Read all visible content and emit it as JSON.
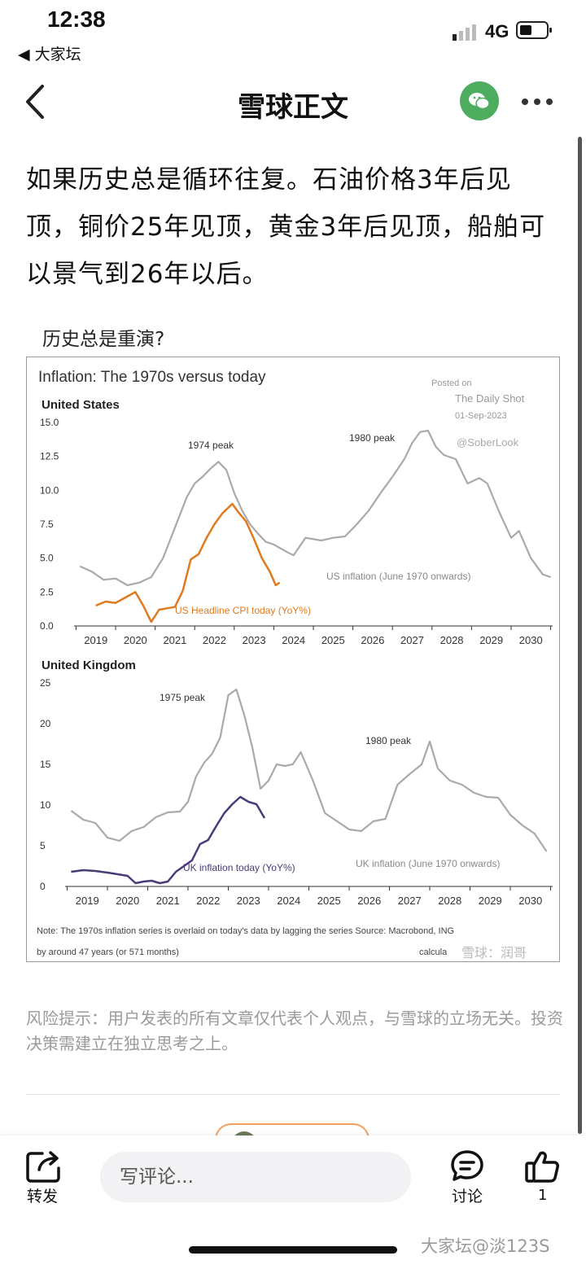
{
  "status_bar": {
    "time": "12:38",
    "back_app": "◀ 大家坛",
    "network": "4G"
  },
  "nav": {
    "title": "雪球正文"
  },
  "post": {
    "body": "如果历史总是循环往复。石油价格3年后见顶，铜价25年见顶，黄金3年后见顶，船舶可以景气到26年以后。",
    "caption": "历史总是重演?"
  },
  "chart_data": {
    "type": "line",
    "title": "Inflation: The 1970s versus today",
    "posted_on": "Posted on",
    "source_name": "The Daily Shot",
    "posted_date": "01-Sep-2023",
    "handle": "@SoberLook",
    "panels": [
      {
        "title": "United States",
        "ylim": [
          0,
          15
        ],
        "yticks": [
          "15.0",
          "12.5",
          "10.0",
          "7.5",
          "5.0",
          "2.5",
          "0.0"
        ],
        "xticks": [
          "2019",
          "2020",
          "2021",
          "2022",
          "2023",
          "2024",
          "2025",
          "2026",
          "2027",
          "2028",
          "2029",
          "2030"
        ],
        "annotations": [
          "1974 peak",
          "1980 peak"
        ],
        "series": [
          {
            "name": "US inflation (June 1970 onwards)",
            "color": "#aaaaaa",
            "x": [
              2018.6,
              2018.9,
              2019.2,
              2019.5,
              2019.8,
              2020.1,
              2020.4,
              2020.7,
              2020.9,
              2021.1,
              2021.3,
              2021.5,
              2021.7,
              2021.9,
              2022.1,
              2022.3,
              2022.5,
              2022.7,
              2022.9,
              2023.1,
              2023.3,
              2023.5,
              2023.8,
              2024.0,
              2024.3,
              2024.7,
              2025.0,
              2025.3,
              2025.6,
              2025.9,
              2026.2,
              2026.5,
              2026.8,
              2027.0,
              2027.2,
              2027.4,
              2027.6,
              2027.8,
              2028.1,
              2028.4,
              2028.7,
              2028.9,
              2029.2,
              2029.5,
              2029.7,
              2030.0,
              2030.3,
              2030.5
            ],
            "values": [
              4.4,
              4.0,
              3.4,
              3.5,
              3.0,
              3.2,
              3.6,
              5.0,
              6.5,
              8.0,
              9.5,
              10.5,
              11.0,
              11.6,
              12.1,
              11.5,
              9.8,
              8.5,
              7.5,
              6.8,
              6.2,
              6.0,
              5.5,
              5.2,
              6.5,
              6.3,
              6.5,
              6.6,
              7.5,
              8.5,
              9.8,
              11.0,
              12.3,
              13.5,
              14.3,
              14.4,
              13.2,
              12.6,
              12.3,
              10.5,
              10.9,
              10.5,
              8.4,
              6.5,
              7.0,
              5.0,
              3.8,
              3.6
            ]
          },
          {
            "name": "US Headline CPI today (YoY%)",
            "color": "#e07a1e",
            "x": [
              2019.0,
              2019.25,
              2019.5,
              2019.75,
              2020.0,
              2020.2,
              2020.4,
              2020.6,
              2020.8,
              2021.0,
              2021.2,
              2021.4,
              2021.6,
              2021.8,
              2022.0,
              2022.2,
              2022.45,
              2022.6,
              2022.8,
              2023.0,
              2023.2,
              2023.4,
              2023.55,
              2023.65
            ],
            "values": [
              1.5,
              1.8,
              1.7,
              2.1,
              2.5,
              1.5,
              0.3,
              1.2,
              1.3,
              1.4,
              2.6,
              4.9,
              5.3,
              6.5,
              7.5,
              8.3,
              9.0,
              8.4,
              7.7,
              6.4,
              5.0,
              4.0,
              3.0,
              3.2
            ]
          }
        ],
        "series_labels": [
          "US inflation (June 1970 onwards)",
          "US Headline CPI today (YoY%)"
        ]
      },
      {
        "title": "United Kingdom",
        "ylim": [
          0,
          25
        ],
        "yticks": [
          "25",
          "20",
          "15",
          "10",
          "5",
          "0"
        ],
        "xticks": [
          "2019",
          "2020",
          "2021",
          "2022",
          "2023",
          "2024",
          "2025",
          "2026",
          "2027",
          "2028",
          "2029",
          "2030"
        ],
        "annotations": [
          "1975 peak",
          "1980 peak"
        ],
        "series": [
          {
            "name": "UK inflation (June 1970 onwards)",
            "color": "#aaaaaa",
            "x": [
              2018.6,
              2018.9,
              2019.2,
              2019.5,
              2019.8,
              2020.1,
              2020.4,
              2020.7,
              2021.0,
              2021.3,
              2021.5,
              2021.7,
              2021.9,
              2022.1,
              2022.3,
              2022.5,
              2022.7,
              2022.9,
              2023.1,
              2023.3,
              2023.5,
              2023.7,
              2023.9,
              2024.1,
              2024.3,
              2024.6,
              2024.9,
              2025.2,
              2025.5,
              2025.8,
              2026.1,
              2026.4,
              2026.7,
              2027.0,
              2027.3,
              2027.5,
              2027.7,
              2028.0,
              2028.3,
              2028.6,
              2028.9,
              2029.2,
              2029.5,
              2029.8,
              2030.1,
              2030.4
            ],
            "values": [
              9.3,
              8.2,
              7.8,
              6.0,
              5.6,
              6.8,
              7.3,
              8.5,
              9.1,
              9.2,
              10.4,
              13.5,
              15.2,
              16.3,
              18.3,
              23.5,
              24.2,
              21.0,
              17.0,
              12.0,
              13.0,
              15.0,
              14.8,
              15.0,
              16.5,
              13.0,
              9.0,
              8.0,
              7.0,
              6.8,
              8.0,
              8.3,
              12.5,
              13.8,
              15.0,
              17.8,
              14.5,
              13.0,
              12.5,
              11.5,
              11.0,
              10.9,
              8.8,
              7.5,
              6.5,
              4.3
            ]
          },
          {
            "name": "UK inflation today (YoY%)",
            "color": "#4a3a78",
            "x": [
              2018.6,
              2018.9,
              2019.2,
              2019.5,
              2019.75,
              2020.0,
              2020.2,
              2020.4,
              2020.6,
              2020.8,
              2021.0,
              2021.2,
              2021.4,
              2021.6,
              2021.8,
              2022.0,
              2022.2,
              2022.4,
              2022.6,
              2022.8,
              2023.0,
              2023.2,
              2023.4
            ],
            "values": [
              1.8,
              2.0,
              1.9,
              1.7,
              1.5,
              1.3,
              0.4,
              0.6,
              0.7,
              0.4,
              0.6,
              1.8,
              2.5,
              3.2,
              5.2,
              5.7,
              7.4,
              9.0,
              10.1,
              11.0,
              10.4,
              10.1,
              8.4
            ]
          }
        ],
        "series_labels": [
          "UK inflation (June 1970 onwards)",
          "UK inflation today (YoY%)"
        ]
      }
    ],
    "note_line1": "Note: The 1970s inflation series is overlaid on today's data by lagging the series  Source: Macrobond, ING",
    "note_line2": "by around 47 years (or 571 months)",
    "calc": "calcula",
    "watermark": "雪球：润哥"
  },
  "risk_notice": "风险提示：用户发表的所有文章仅代表个人观点，与雪球的立场无关。投资决策需建立在独立思考之上。",
  "bottom_bar": {
    "repost_label": "转发",
    "comment_placeholder": "写评论...",
    "discuss_label": "讨论",
    "like_count": "1",
    "forum_watermark": "大家坛@淡123S"
  },
  "colors": {
    "wechat_green": "#4eac5f",
    "us_today": "#e07a1e",
    "uk_today": "#4a3a78",
    "seventies": "#aaaaaa"
  }
}
